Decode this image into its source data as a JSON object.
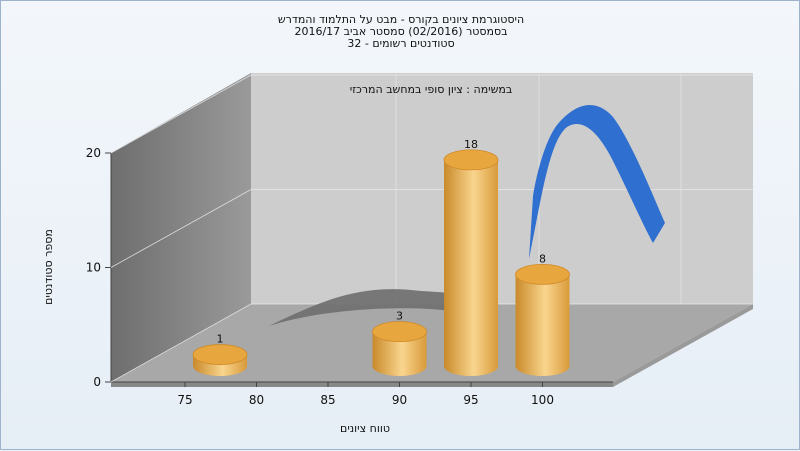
{
  "chart_data": {
    "type": "bar",
    "title_lines": [
      "היסטוגרמת ציונים בקורס - מבט על התלמוד והמדרש",
      "בסמסטר  (02/2016)  סמסטר אביב 2016/17",
      "סטודנטים רשומים - 32"
    ],
    "subtitle": "במשימה : ציון סופי במחשב המרכזי",
    "xlabel": "טווח ציונים",
    "ylabel": "מספר סטודנטים",
    "x_ticks": [
      "75",
      "80",
      "85",
      "90",
      "95",
      "100"
    ],
    "y_ticks": [
      "0",
      "10",
      "20"
    ],
    "ylim": [
      0,
      20
    ],
    "bars": [
      {
        "label": "75",
        "value": 1
      },
      {
        "label": "90",
        "value": 3
      },
      {
        "label": "95",
        "value": 18
      },
      {
        "label": "100",
        "value": 8
      }
    ],
    "bar_labels": [
      "1",
      "3",
      "18",
      "8"
    ],
    "colors": {
      "bar_light": "#f7d289",
      "bar_dark": "#c98a2a",
      "curve_blue": "#2f6fd0",
      "curve_gray": "#707070",
      "back_wall": "#cccccc",
      "side_wall": "#7f7f7f",
      "floor": "#a6a6a6"
    },
    "grid": true
  }
}
